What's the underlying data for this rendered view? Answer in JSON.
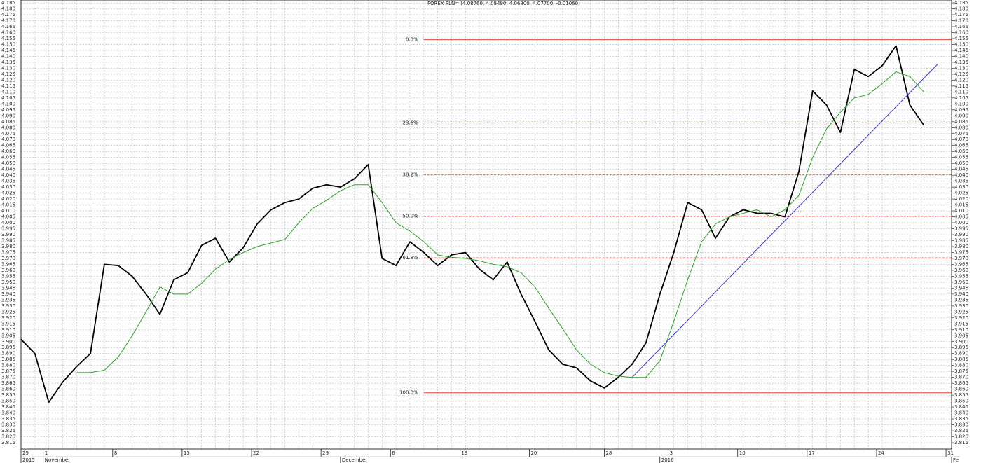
{
  "chart_data": {
    "type": "line",
    "title": "FOREX PLN= (4.08760, 4.09490, 4.06800, 4.07700, -0.01060)",
    "grid": true,
    "xlim": [
      "2015-10-29",
      "2016-02-01"
    ],
    "ylim": [
      3.8097,
      4.1874
    ],
    "x": [
      "2015-10-29",
      "2015-10-30",
      "2015-11-02",
      "2015-11-03",
      "2015-11-04",
      "2015-11-05",
      "2015-11-06",
      "2015-11-09",
      "2015-11-10",
      "2015-11-11",
      "2015-11-12",
      "2015-11-13",
      "2015-11-16",
      "2015-11-17",
      "2015-11-18",
      "2015-11-19",
      "2015-11-20",
      "2015-11-23",
      "2015-11-24",
      "2015-11-25",
      "2015-11-26",
      "2015-11-27",
      "2015-11-30",
      "2015-12-01",
      "2015-12-02",
      "2015-12-03",
      "2015-12-04",
      "2015-12-07",
      "2015-12-08",
      "2015-12-09",
      "2015-12-10",
      "2015-12-11",
      "2015-12-14",
      "2015-12-15",
      "2015-12-16",
      "2015-12-17",
      "2015-12-18",
      "2015-12-21",
      "2015-12-22",
      "2015-12-23",
      "2015-12-24",
      "2015-12-25",
      "2015-12-28",
      "2015-12-29",
      "2015-12-30",
      "2015-12-31",
      "2016-01-01",
      "2016-01-04",
      "2016-01-05",
      "2016-01-06",
      "2016-01-07",
      "2016-01-08",
      "2016-01-11",
      "2016-01-12",
      "2016-01-13",
      "2016-01-14",
      "2016-01-15",
      "2016-01-18",
      "2016-01-19",
      "2016-01-20",
      "2016-01-21",
      "2016-01-22",
      "2016-01-25",
      "2016-01-26",
      "2016-01-27",
      "2016-01-28"
    ],
    "series": [
      {
        "color": "#000000",
        "values": [
          3.902,
          3.89,
          3.849,
          3.866,
          3.879,
          3.89,
          3.965,
          3.964,
          3.955,
          3.94,
          3.923,
          3.952,
          3.958,
          3.981,
          3.987,
          3.967,
          3.979,
          3.999,
          4.011,
          4.017,
          4.02,
          4.029,
          4.032,
          4.03,
          4.037,
          4.049,
          3.97,
          3.964,
          3.984,
          3.975,
          3.964,
          3.973,
          3.975,
          3.961,
          3.952,
          3.967,
          3.94,
          3.917,
          3.893,
          3.881,
          3.878,
          3.867,
          3.861,
          3.87,
          3.881,
          3.899,
          3.94,
          3.975,
          4.017,
          4.011,
          3.987,
          4.005,
          4.011,
          4.008,
          4.008,
          4.005,
          4.043,
          4.111,
          4.099,
          4.076,
          4.129,
          4.123,
          4.132,
          4.149,
          4.099,
          4.082
        ]
      },
      {
        "color": "#2ea02e",
        "values": [
          null,
          null,
          null,
          null,
          3.874,
          3.874,
          3.876,
          3.887,
          3.905,
          3.925,
          3.946,
          3.94,
          3.94,
          3.949,
          3.961,
          3.969,
          3.975,
          3.98,
          3.983,
          3.986,
          4.0,
          4.012,
          4.019,
          4.027,
          4.032,
          4.032,
          4.017,
          4.0,
          3.993,
          3.984,
          3.973,
          3.971,
          3.97,
          3.968,
          3.965,
          3.963,
          3.958,
          3.946,
          3.928,
          3.911,
          3.893,
          3.881,
          3.874,
          3.871,
          3.87,
          3.87,
          3.884,
          3.917,
          3.952,
          3.984,
          3.999,
          4.005,
          4.008,
          4.011,
          4.005,
          4.011,
          4.023,
          4.055,
          4.079,
          4.093,
          4.105,
          4.108,
          4.117,
          4.127,
          4.123,
          4.11
        ]
      }
    ],
    "trendline": {
      "color": "#3a3ad8",
      "x": [
        "2015-12-30",
        "2016-01-29"
      ],
      "values": [
        3.87,
        4.1335
      ]
    },
    "fibonacci": {
      "color": "#e8463a",
      "x_start": "2015-12-09",
      "levels": [
        {
          "label": "0.0%",
          "price": 4.154
        },
        {
          "label": "23.6%",
          "price": 4.0839
        },
        {
          "label": "38.2%",
          "price": 4.0405
        },
        {
          "label": "50.0%",
          "price": 4.0055
        },
        {
          "label": "61.8%",
          "price": 3.9705
        },
        {
          "label": "100.0%",
          "price": 3.857
        }
      ]
    },
    "yticks": [
      3.815,
      {
        "value": 3.82,
        "label": "3.820"
      },
      3.825,
      {
        "value": 3.83,
        "label": "3.830"
      },
      3.835,
      {
        "value": 3.84,
        "label": "3.840"
      },
      3.845,
      {
        "value": 3.85,
        "label": "3.850"
      },
      3.855,
      {
        "value": 3.86,
        "label": "3.860"
      },
      3.865,
      {
        "value": 3.87,
        "label": "3.870"
      },
      3.875,
      {
        "value": 3.88,
        "label": "3.880"
      },
      3.885,
      {
        "value": 3.89,
        "label": "3.890"
      },
      3.895,
      {
        "value": 3.9,
        "label": "3.900"
      },
      3.905,
      {
        "value": 3.91,
        "label": "3.910"
      },
      3.915,
      {
        "value": 3.92,
        "label": "3.920"
      },
      3.925,
      {
        "value": 3.93,
        "label": "3.930"
      },
      3.935,
      {
        "value": 3.94,
        "label": "3.940"
      },
      3.945,
      {
        "value": 3.95,
        "label": "3.950"
      },
      3.955,
      {
        "value": 3.96,
        "label": "3.960"
      },
      3.965,
      {
        "value": 3.97,
        "label": "3.970"
      },
      3.975,
      {
        "value": 3.98,
        "label": "3.980"
      },
      3.985,
      {
        "value": 3.99,
        "label": "3.990"
      },
      3.995,
      {
        "value": 4,
        "label": "4.000"
      },
      4.005,
      {
        "value": 4.01,
        "label": "4.010"
      },
      4.015,
      {
        "value": 4.02,
        "label": "4.020"
      },
      4.025,
      {
        "value": 4.03,
        "label": "4.030"
      },
      4.035,
      {
        "value": 4.04,
        "label": "4.040"
      },
      4.045,
      {
        "value": 4.05,
        "label": "4.050"
      },
      4.055,
      {
        "value": 4.06,
        "label": "4.060"
      },
      4.065,
      {
        "value": 4.07,
        "label": "4.070"
      },
      4.075,
      {
        "value": 4.08,
        "label": "4.080"
      },
      4.085,
      {
        "value": 4.09,
        "label": "4.090"
      },
      4.095,
      {
        "value": 4.1,
        "label": "4.100"
      },
      4.105,
      {
        "value": 4.11,
        "label": "4.110"
      },
      4.115,
      {
        "value": 4.12,
        "label": "4.120"
      },
      4.125,
      {
        "value": 4.13,
        "label": "4.130"
      },
      4.135,
      {
        "value": 4.14,
        "label": "4.140"
      },
      4.145,
      {
        "value": 4.15,
        "label": "4.150"
      },
      4.155,
      {
        "value": 4.16,
        "label": "4.160"
      },
      4.165,
      {
        "value": 4.17,
        "label": "4.170"
      },
      4.175,
      {
        "value": 4.18,
        "label": "4.180"
      },
      4.185
    ],
    "xticks": [
      {
        "value": "2015-10-29",
        "label": "29"
      },
      {
        "value": "2015-11-01",
        "label": "1"
      },
      {
        "value": "2015-11-08",
        "label": "8"
      },
      {
        "value": "2015-11-15",
        "label": "15"
      },
      {
        "value": "2015-11-22",
        "label": "22"
      },
      {
        "value": "2015-11-29",
        "label": "29"
      },
      {
        "value": "2015-12-06",
        "label": "6"
      },
      {
        "value": "2015-12-13",
        "label": "13"
      },
      {
        "value": "2015-12-20",
        "label": "20"
      },
      {
        "value": "2015-12-28",
        "label": "28"
      },
      {
        "value": "2016-01-03",
        "label": "3"
      },
      {
        "value": "2016-01-10",
        "label": "10"
      },
      {
        "value": "2016-01-17",
        "label": "17"
      },
      {
        "value": "2016-01-24",
        "label": "24"
      },
      {
        "value": "2016-01-31",
        "label": "31"
      }
    ],
    "xticks_periods": [
      {
        "value": "2015-10-29",
        "label": "2015"
      },
      {
        "value": "2015-11-01",
        "label": "November"
      },
      {
        "value": "2015-12-01",
        "label": "December"
      },
      {
        "value": "2016-01-01",
        "label": "2016"
      },
      {
        "value": "2016-02-01",
        "label": "Fe"
      }
    ]
  }
}
